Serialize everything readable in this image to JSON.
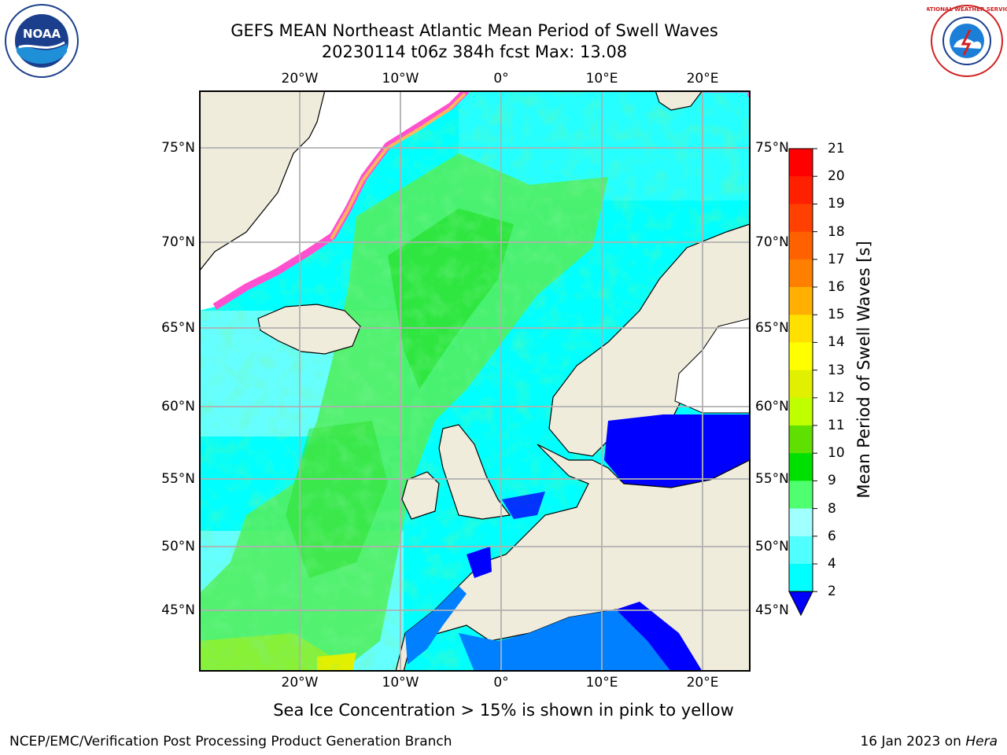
{
  "title": {
    "line1": "GEFS MEAN Northeast Atlantic Mean Period of Swell Waves",
    "line2": "20230114 t06z 384h fcst   Max: 13.08"
  },
  "map": {
    "lon_labels": [
      "20°W",
      "10°W",
      "0°",
      "10°E",
      "20°E"
    ],
    "lat_labels": [
      "75°N",
      "70°N",
      "65°N",
      "60°N",
      "55°N",
      "50°N",
      "45°N"
    ],
    "land_color": "#efecdc",
    "ocean_color": "#00ffff",
    "grid_color": "#b0b0b0"
  },
  "colorbar": {
    "label": "Mean Period of Swell Waves [s]",
    "ticks": [
      "21",
      "20",
      "19",
      "18",
      "17",
      "16",
      "15",
      "14",
      "13",
      "12",
      "11",
      "10",
      "9",
      "8",
      "6",
      "4",
      "2"
    ],
    "colors": [
      "#ff0000",
      "#ff2000",
      "#ff4000",
      "#ff6000",
      "#ff8000",
      "#ffb000",
      "#ffe000",
      "#ffff00",
      "#e0f000",
      "#c0ff00",
      "#60e000",
      "#00e000",
      "#50ff70",
      "#a0ffff",
      "#50ffff",
      "#00ffff",
      "#0080ff"
    ],
    "under_color": "#0000ff"
  },
  "footnote": "Sea Ice Concentration > 15% is shown in pink to yellow",
  "credit": "NCEP/EMC/Verification Post Processing Product Generation Branch",
  "date": "16 Jan 2023 on",
  "machine": "Hera",
  "logos": {
    "noaa_text": "NOAA",
    "nws_text": "NATIONAL WEATHER SERVICE"
  }
}
